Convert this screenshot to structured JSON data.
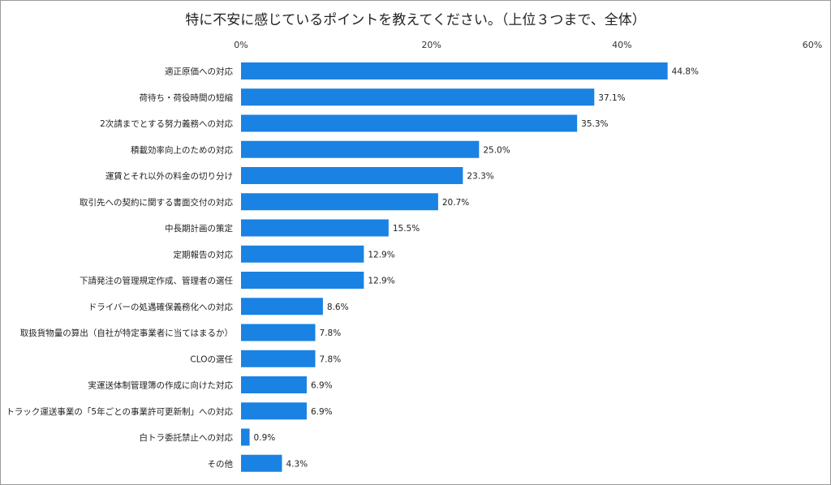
{
  "chart_data": {
    "type": "bar",
    "orientation": "horizontal",
    "title": "特に不安に感じているポイントを教えてください。（上位３つまで、全体）",
    "xlabel": "",
    "ylabel": "",
    "xlim": [
      0,
      60
    ],
    "ticks": [
      "0%",
      "20%",
      "40%",
      "60%"
    ],
    "tick_values": [
      0,
      20,
      40,
      60
    ],
    "grid": false,
    "legend": "none",
    "bar_color": "#1a82e2",
    "categories": [
      "適正原価への対応",
      "荷待ち・荷役時間の短縮",
      "2次請までとする努力義務への対応",
      "積載効率向上のための対応",
      "運賃とそれ以外の料金の切り分け",
      "取引先への契約に関する書面交付の対応",
      "中長期計画の策定",
      "定期報告の対応",
      "下請発注の管理規定作成、管理者の選任",
      "ドライバーの処遇確保義務化への対応",
      "取扱貨物量の算出（自社が特定事業者に当てはまるか）",
      "CLOの選任",
      "実運送体制管理簿の作成に向けた対応",
      "トラック運送事業の「5年ごとの事業許可更新制」への対応",
      "白トラ委託禁止への対応",
      "その他"
    ],
    "values": [
      44.8,
      37.1,
      35.3,
      25.0,
      23.3,
      20.7,
      15.5,
      12.9,
      12.9,
      8.6,
      7.8,
      7.8,
      6.9,
      6.9,
      0.9,
      4.3
    ],
    "data_labels": [
      "44.8%",
      "37.1%",
      "35.3%",
      "25.0%",
      "23.3%",
      "20.7%",
      "15.5%",
      "12.9%",
      "12.9%",
      "8.6%",
      "7.8%",
      "7.8%",
      "6.9%",
      "6.9%",
      "0.9%",
      "4.3%"
    ]
  }
}
